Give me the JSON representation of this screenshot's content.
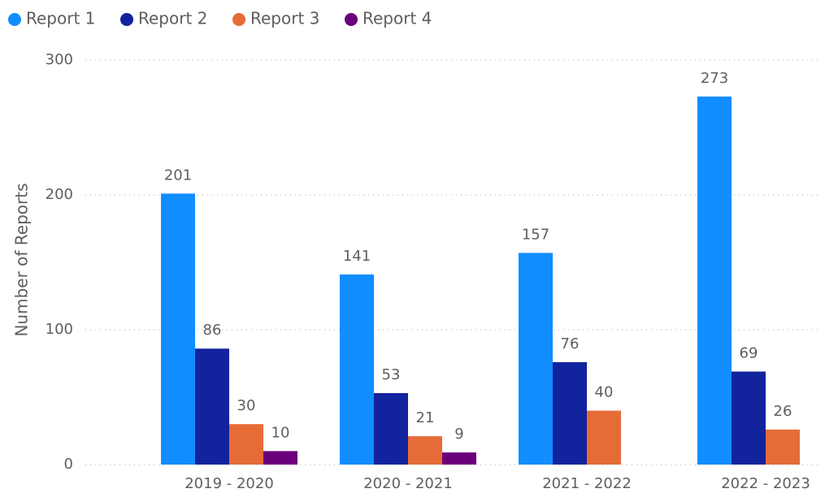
{
  "chart_data": {
    "type": "bar",
    "y_axis_label": "Number of Reports",
    "categories": [
      "2019 - 2020",
      "2020 - 2021",
      "2021 - 2022",
      "2022 - 2023"
    ],
    "series": [
      {
        "name": "Report 1",
        "color": "#118DFF",
        "values": [
          201,
          141,
          157,
          273
        ]
      },
      {
        "name": "Report 2",
        "color": "#12239E",
        "values": [
          86,
          53,
          76,
          69
        ]
      },
      {
        "name": "Report 3",
        "color": "#E66C37",
        "values": [
          30,
          21,
          40,
          26
        ]
      },
      {
        "name": "Report 4",
        "color": "#6B007B",
        "values": [
          10,
          9,
          null,
          null
        ]
      }
    ],
    "ylim": [
      0,
      300
    ],
    "yticks": [
      0,
      100,
      200,
      300
    ],
    "grid": true,
    "legend": "top-left"
  }
}
